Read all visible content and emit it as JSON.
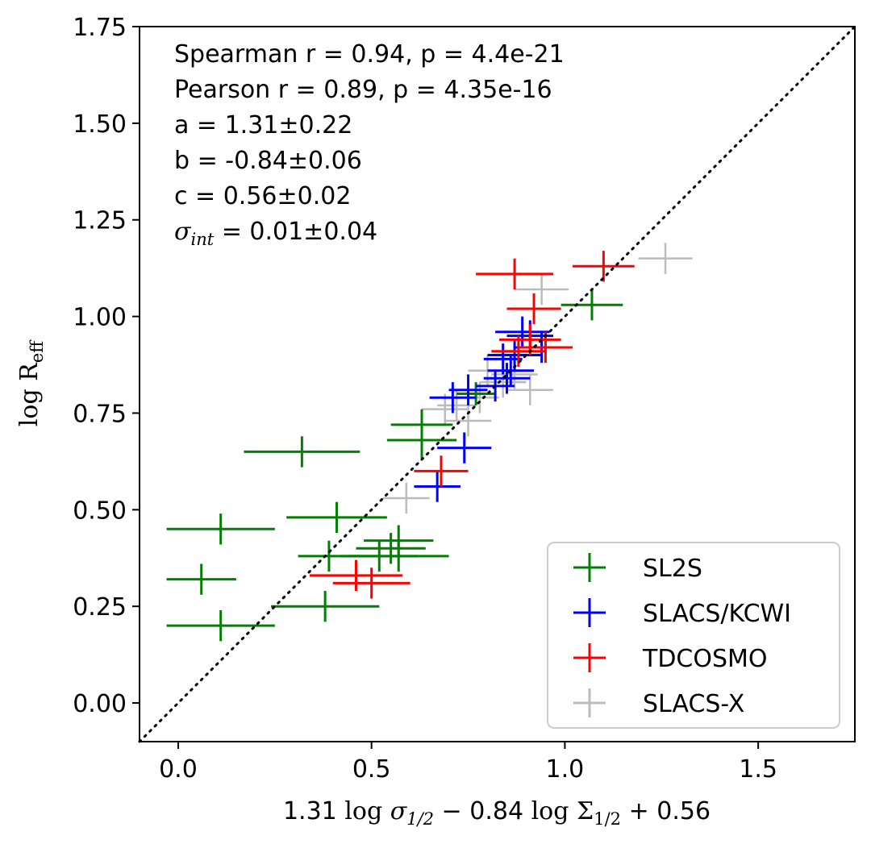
{
  "chart_data": {
    "type": "scatter",
    "xlabel": "1.31 log σ1/2 − 0.84 log Σ1/2 + 0.56",
    "xlabel_parts": {
      "coef1": "1.31",
      "log1": "log",
      "sym1": "σ",
      "sub1": "1/2",
      "op": "−",
      "coef2": "0.84",
      "log2": "log",
      "sym2": "Σ",
      "sub2": "1/2",
      "tail": "+ 0.56"
    },
    "ylabel": "log Reff",
    "ylabel_parts": {
      "log": "log",
      "sym": "R",
      "sub": "eff"
    },
    "xlim": [
      -0.1,
      1.75
    ],
    "ylim": [
      -0.1,
      1.75
    ],
    "x_ticks": [
      {
        "value": 0.0,
        "label": "0.0"
      },
      {
        "value": 0.5,
        "label": "0.5"
      },
      {
        "value": 1.0,
        "label": "1.0"
      },
      {
        "value": 1.5,
        "label": "1.5"
      }
    ],
    "y_ticks": [
      {
        "value": 0.0,
        "label": "0.00"
      },
      {
        "value": 0.25,
        "label": "0.25"
      },
      {
        "value": 0.5,
        "label": "0.50"
      },
      {
        "value": 0.75,
        "label": "0.75"
      },
      {
        "value": 1.0,
        "label": "1.00"
      },
      {
        "value": 1.25,
        "label": "1.25"
      },
      {
        "value": 1.5,
        "label": "1.50"
      },
      {
        "value": 1.75,
        "label": "1.75"
      }
    ],
    "reference_line": "one-to-one (dotted)",
    "grid": false,
    "legend_position": "lower-right",
    "stats": {
      "spearman": "Spearman r = 0.94, p = 4.4e-21",
      "pearson": "Pearson r = 0.89, p = 4.35e-16",
      "a": "a = 1.31±0.22",
      "b": "b = -0.84±0.06",
      "c": "c = 0.56±0.02",
      "sigma_symbol": "σ",
      "sigma_sub": "int",
      "sigma_value": " = 0.01±0.04"
    },
    "series": [
      {
        "name": "SL2S",
        "color": "#008000",
        "points": [
          {
            "x": 1.07,
            "y": 1.03,
            "xerr": 0.08,
            "yerr": 0.04
          },
          {
            "x": 0.63,
            "y": 0.72,
            "xerr": 0.08,
            "yerr": 0.04
          },
          {
            "x": 0.63,
            "y": 0.68,
            "xerr": 0.09,
            "yerr": 0.05
          },
          {
            "x": 0.32,
            "y": 0.65,
            "xerr": 0.15,
            "yerr": 0.04
          },
          {
            "x": 0.77,
            "y": 0.8,
            "xerr": 0.05,
            "yerr": 0.03
          },
          {
            "x": 0.41,
            "y": 0.48,
            "xerr": 0.13,
            "yerr": 0.04
          },
          {
            "x": 0.11,
            "y": 0.45,
            "xerr": 0.14,
            "yerr": 0.04
          },
          {
            "x": 0.57,
            "y": 0.42,
            "xerr": 0.09,
            "yerr": 0.04
          },
          {
            "x": 0.55,
            "y": 0.4,
            "xerr": 0.09,
            "yerr": 0.04
          },
          {
            "x": 0.57,
            "y": 0.38,
            "xerr": 0.13,
            "yerr": 0.04
          },
          {
            "x": 0.39,
            "y": 0.38,
            "xerr": 0.08,
            "yerr": 0.04
          },
          {
            "x": 0.52,
            "y": 0.38,
            "xerr": 0.1,
            "yerr": 0.04
          },
          {
            "x": 0.06,
            "y": 0.32,
            "xerr": 0.09,
            "yerr": 0.04
          },
          {
            "x": 0.38,
            "y": 0.25,
            "xerr": 0.14,
            "yerr": 0.04
          },
          {
            "x": 0.11,
            "y": 0.2,
            "xerr": 0.14,
            "yerr": 0.04
          }
        ]
      },
      {
        "name": "SLACS/KCWI",
        "color": "#0000ff",
        "points": [
          {
            "x": 0.89,
            "y": 0.96,
            "xerr": 0.07,
            "yerr": 0.04
          },
          {
            "x": 0.91,
            "y": 0.95,
            "xerr": 0.06,
            "yerr": 0.04
          },
          {
            "x": 0.94,
            "y": 0.92,
            "xerr": 0.07,
            "yerr": 0.04
          },
          {
            "x": 0.87,
            "y": 0.9,
            "xerr": 0.07,
            "yerr": 0.04
          },
          {
            "x": 0.84,
            "y": 0.89,
            "xerr": 0.05,
            "yerr": 0.04
          },
          {
            "x": 0.86,
            "y": 0.86,
            "xerr": 0.06,
            "yerr": 0.04
          },
          {
            "x": 0.85,
            "y": 0.84,
            "xerr": 0.06,
            "yerr": 0.04
          },
          {
            "x": 0.82,
            "y": 0.82,
            "xerr": 0.05,
            "yerr": 0.04
          },
          {
            "x": 0.75,
            "y": 0.81,
            "xerr": 0.05,
            "yerr": 0.04
          },
          {
            "x": 0.71,
            "y": 0.79,
            "xerr": 0.06,
            "yerr": 0.04
          },
          {
            "x": 0.74,
            "y": 0.66,
            "xerr": 0.07,
            "yerr": 0.04
          },
          {
            "x": 0.67,
            "y": 0.56,
            "xerr": 0.06,
            "yerr": 0.04
          }
        ]
      },
      {
        "name": "TDCOSMO",
        "color": "#ff0000",
        "points": [
          {
            "x": 0.87,
            "y": 1.11,
            "xerr": 0.1,
            "yerr": 0.04
          },
          {
            "x": 1.1,
            "y": 1.13,
            "xerr": 0.08,
            "yerr": 0.04
          },
          {
            "x": 0.92,
            "y": 1.02,
            "xerr": 0.07,
            "yerr": 0.04
          },
          {
            "x": 0.91,
            "y": 0.94,
            "xerr": 0.08,
            "yerr": 0.04
          },
          {
            "x": 0.95,
            "y": 0.92,
            "xerr": 0.07,
            "yerr": 0.04
          },
          {
            "x": 0.88,
            "y": 0.91,
            "xerr": 0.07,
            "yerr": 0.04
          },
          {
            "x": 0.68,
            "y": 0.6,
            "xerr": 0.07,
            "yerr": 0.04
          },
          {
            "x": 0.46,
            "y": 0.33,
            "xerr": 0.12,
            "yerr": 0.04
          },
          {
            "x": 0.5,
            "y": 0.31,
            "xerr": 0.1,
            "yerr": 0.04
          }
        ]
      },
      {
        "name": "SLACS-X",
        "color": "#bbbbbb",
        "points": [
          {
            "x": 1.26,
            "y": 1.15,
            "xerr": 0.07,
            "yerr": 0.04
          },
          {
            "x": 0.94,
            "y": 1.07,
            "xerr": 0.07,
            "yerr": 0.04
          },
          {
            "x": 0.87,
            "y": 0.85,
            "xerr": 0.06,
            "yerr": 0.04
          },
          {
            "x": 0.91,
            "y": 0.81,
            "xerr": 0.06,
            "yerr": 0.04
          },
          {
            "x": 0.84,
            "y": 0.83,
            "xerr": 0.06,
            "yerr": 0.04
          },
          {
            "x": 0.8,
            "y": 0.86,
            "xerr": 0.05,
            "yerr": 0.04
          },
          {
            "x": 0.78,
            "y": 0.79,
            "xerr": 0.05,
            "yerr": 0.04
          },
          {
            "x": 0.72,
            "y": 0.77,
            "xerr": 0.05,
            "yerr": 0.04
          },
          {
            "x": 0.69,
            "y": 0.76,
            "xerr": 0.06,
            "yerr": 0.04
          },
          {
            "x": 0.75,
            "y": 0.73,
            "xerr": 0.06,
            "yerr": 0.04
          },
          {
            "x": 0.59,
            "y": 0.53,
            "xerr": 0.06,
            "yerr": 0.04
          }
        ]
      }
    ]
  }
}
